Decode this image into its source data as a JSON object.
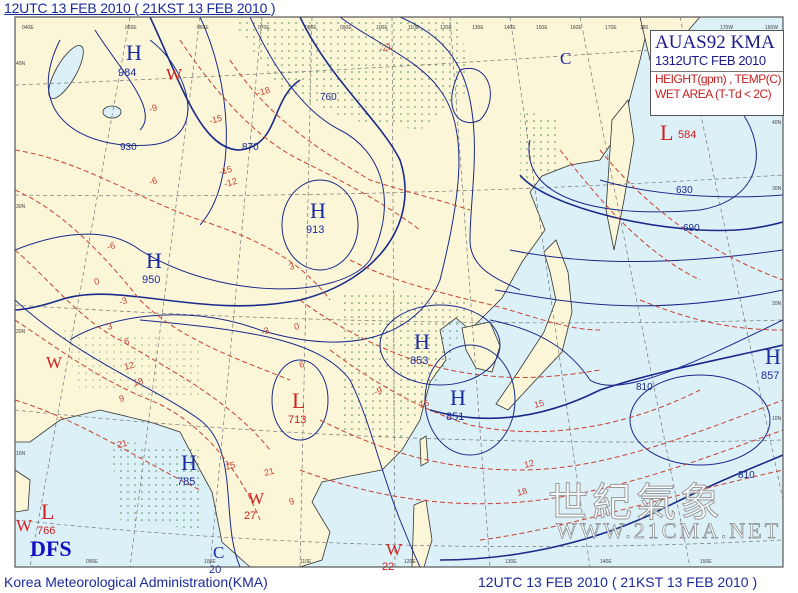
{
  "header": {
    "title": "12UTC 13 FEB 2010 ( 21KST 13 FEB 2010 )"
  },
  "legend": {
    "product": "AUAS92  KMA",
    "time": "1312UTC FEB 2010",
    "line1": "HEIGHT(gpm) , TEMP(C)",
    "line2": "WET  AREA (T-Td < 2C)"
  },
  "footer": {
    "agency": "Korea Meteorological Administration(KMA)",
    "time": "12UTC 13 FEB 2010 ( 21KST 13 FEB 2010 )"
  },
  "logo": "DFS",
  "watermark": {
    "text": "世紀氣象",
    "url": "WWW.21CMA.NET"
  },
  "colors": {
    "land": "#fbf6d8",
    "ocean": "#dcf0f8",
    "height_contour": "#1a2a8a",
    "temp_contour": "#c84030",
    "high": "#1a2aa0",
    "low": "#d02020"
  },
  "pressure_systems": [
    {
      "type": "H",
      "value": "984"
    },
    {
      "type": "W",
      "value": ""
    },
    {
      "type": "H",
      "value": "913"
    },
    {
      "type": "H",
      "value": "950"
    },
    {
      "type": "W",
      "value": ""
    },
    {
      "type": "W",
      "value": "27"
    },
    {
      "type": "W",
      "value": "22"
    },
    {
      "type": "L",
      "value": "713"
    },
    {
      "type": "H",
      "value": "853"
    },
    {
      "type": "H",
      "value": "851"
    },
    {
      "type": "H",
      "value": "785"
    },
    {
      "type": "L",
      "value": "766"
    },
    {
      "type": "W",
      "value": ""
    },
    {
      "type": "C",
      "value": "20"
    },
    {
      "type": "C",
      "value": ""
    },
    {
      "type": "L",
      "value": "584"
    },
    {
      "type": "H",
      "value": "857"
    }
  ],
  "height_labels": [
    "930",
    "870",
    "760",
    "630",
    "690",
    "810",
    "810"
  ],
  "temp_labels": [
    "-9",
    "-6",
    "-3",
    "0",
    "3",
    "6",
    "9",
    "12",
    "15",
    "18",
    "21",
    "-12",
    "-15",
    "-9",
    "-6",
    "-3",
    "0",
    "3",
    "6",
    "9",
    "12",
    "15",
    "18",
    "15",
    "-21",
    "-18",
    "-15",
    "21"
  ],
  "lon_ticks_top": [
    "040E",
    "050E",
    "060E",
    "070E",
    "080E",
    "090E",
    "100E",
    "110E",
    "120E",
    "130E",
    "140E",
    "150E",
    "160E",
    "170E",
    "180",
    "170W",
    "160W"
  ],
  "lon_ticks_bottom": [
    "090E",
    "100E",
    "110E",
    "120E",
    "130E",
    "140E",
    "150E"
  ],
  "lat_ticks_left": [
    "40N",
    "30N",
    "20N",
    "10N"
  ],
  "lat_ticks_right": [
    "40N",
    "30N",
    "20N",
    "10N"
  ]
}
